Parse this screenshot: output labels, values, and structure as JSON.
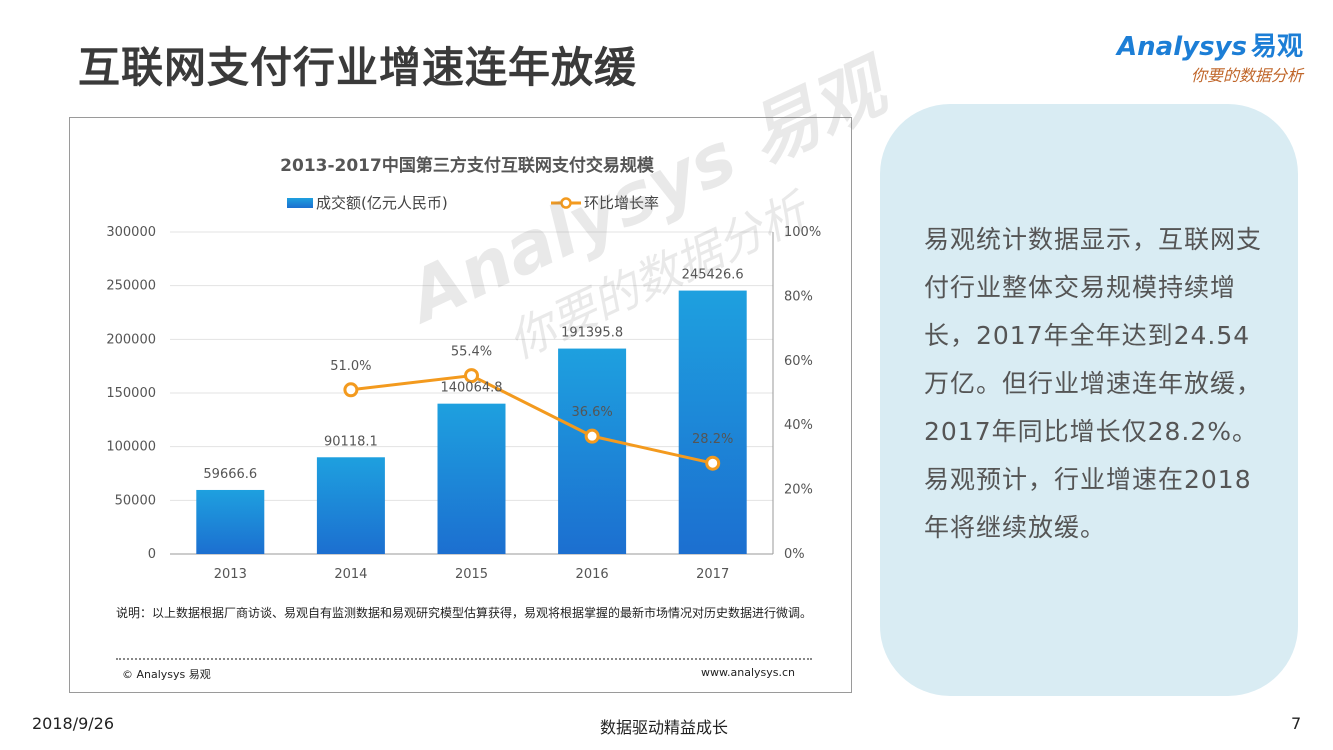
{
  "header": {
    "title": "互联网支付行业增速连年放缓",
    "logo_main": "Analysys",
    "logo_cn": "易观",
    "logo_sub": "你要的数据分析"
  },
  "chart_data": {
    "type": "bar",
    "title": "2013-2017中国第三方支付互联网支付交易规模",
    "categories": [
      "2013",
      "2014",
      "2015",
      "2016",
      "2017"
    ],
    "series": [
      {
        "name": "成交额(亿元人民币)",
        "type": "bar",
        "axis": "left",
        "values": [
          59666.6,
          90118.1,
          140064.8,
          191395.8,
          245426.6
        ],
        "labels": [
          "59666.6",
          "90118.1",
          "140064.8",
          "191395.8",
          "245426.6"
        ]
      },
      {
        "name": "环比增长率",
        "type": "line",
        "axis": "right",
        "values": [
          null,
          51.0,
          55.4,
          36.6,
          28.2
        ],
        "labels": [
          "",
          "51.0%",
          "55.4%",
          "36.6%",
          "28.2%"
        ]
      }
    ],
    "ylim": [
      0,
      300000
    ],
    "yticks": [
      "0",
      "50000",
      "100000",
      "150000",
      "200000",
      "250000",
      "300000"
    ],
    "y2lim": [
      0,
      100
    ],
    "y2ticks": [
      "0%",
      "20%",
      "40%",
      "60%",
      "80%",
      "100%"
    ],
    "grid": true,
    "legend_position": "top",
    "colors": {
      "bar_top": "#1ea0df",
      "bar_bottom": "#1c6fd0",
      "line": "#f39a1e"
    }
  },
  "chart_footer": {
    "note": "说明：以上数据根据厂商访谈、易观自有监测数据和易观研究模型估算获得，易观将根据掌握的最新市场情况对历史数据进行微调。",
    "copyright": "© Analysys 易观",
    "url": "www.analysys.cn"
  },
  "watermark": {
    "main": "Analysys 易观",
    "sub": "你要的数据分析"
  },
  "summary": {
    "text": "易观统计数据显示，互联网支付行业整体交易规模持续增长，2017年全年达到24.54万亿。但行业增速连年放缓，2017年同比增长仅28.2%。易观预计，行业增速在2018年将继续放缓。"
  },
  "footer": {
    "date": "2018/9/26",
    "slogan": "数据驱动精益成长",
    "page": "7"
  }
}
